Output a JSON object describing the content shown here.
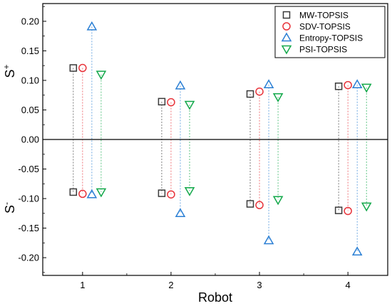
{
  "chart_data": {
    "type": "scatter",
    "xlabel": "Robot",
    "ylabel_main": "S",
    "ylabel_plus": "+",
    "ylabel_minus": "-",
    "categories": [
      "1",
      "2",
      "3",
      "4"
    ],
    "ylim": [
      -0.23,
      0.23
    ],
    "yticks": [
      0.2,
      0.15,
      0.1,
      0.05,
      0.0,
      -0.05,
      -0.1,
      -0.15,
      -0.2
    ],
    "ytick_labels": [
      "0.20",
      "0.15",
      "0.10",
      "0.05",
      "0.00",
      "-0.05",
      "-0.10",
      "-0.15",
      "-0.20"
    ],
    "zero_line": true,
    "grid": false,
    "legend_position": "top-right",
    "series": [
      {
        "name": "MW-TOPSIS",
        "marker": "square",
        "color": "#3a3a3a",
        "offset": -0.105,
        "plus": [
          0.121,
          0.064,
          0.077,
          0.09
        ],
        "minus": [
          -0.089,
          -0.091,
          -0.109,
          -0.12
        ]
      },
      {
        "name": "SDV-TOPSIS",
        "marker": "circle",
        "color": "#e8333a",
        "offset": 0.0,
        "plus": [
          0.121,
          0.063,
          0.081,
          0.092
        ],
        "minus": [
          -0.092,
          -0.093,
          -0.111,
          -0.121
        ]
      },
      {
        "name": "Entropy-TOPSIS",
        "marker": "triangle-up",
        "color": "#2a7fd4",
        "offset": 0.105,
        "plus": [
          0.191,
          0.091,
          0.093,
          0.093
        ],
        "minus": [
          -0.093,
          -0.125,
          -0.171,
          -0.19
        ]
      },
      {
        "name": "PSI-TOPSIS",
        "marker": "triangle-down",
        "color": "#12a84a",
        "offset": 0.21,
        "plus": [
          0.11,
          0.059,
          0.072,
          0.088
        ],
        "minus": [
          -0.089,
          -0.087,
          -0.102,
          -0.113
        ]
      }
    ]
  }
}
